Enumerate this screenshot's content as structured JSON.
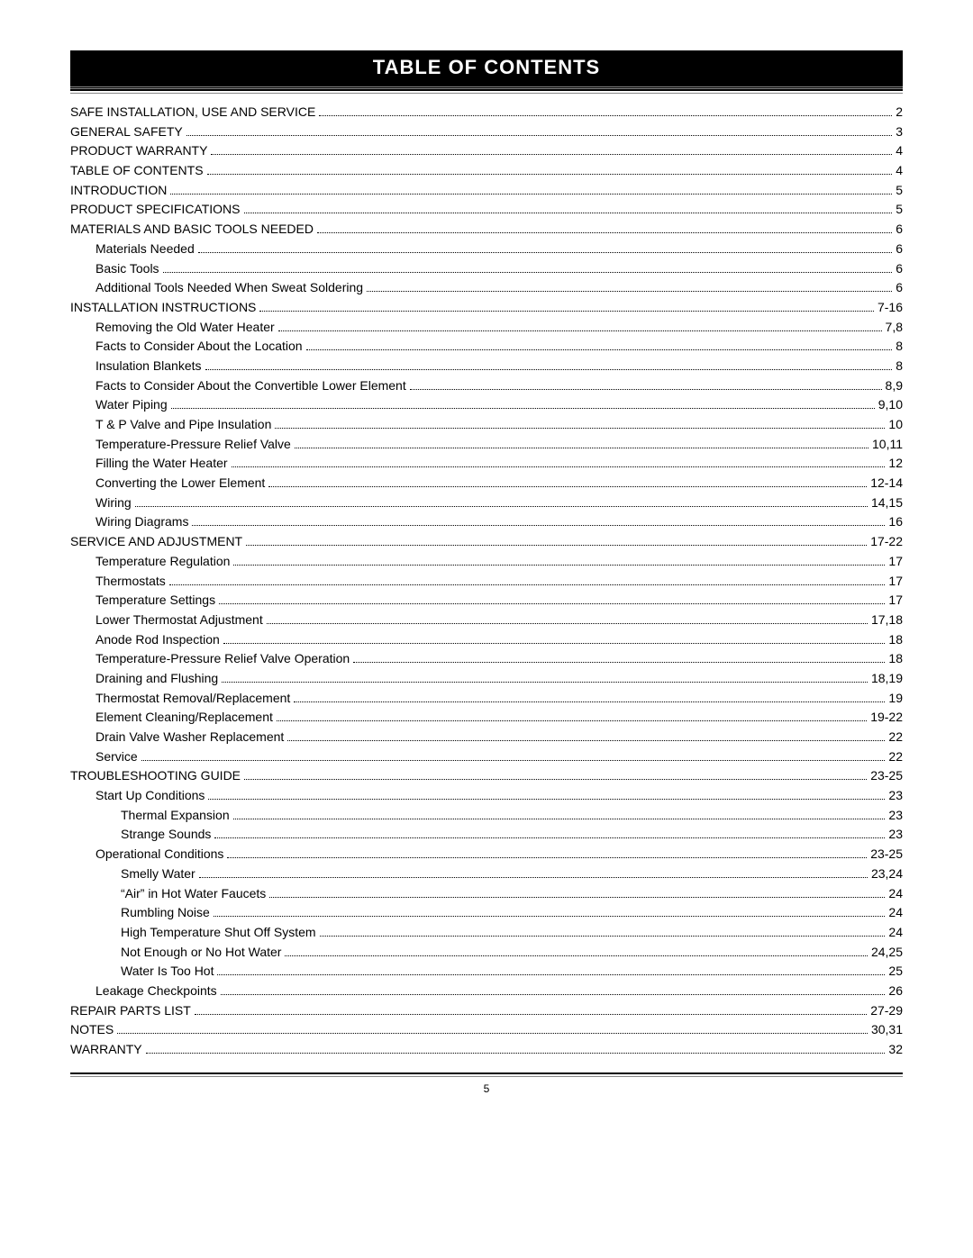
{
  "header": {
    "title": "TABLE OF CONTENTS"
  },
  "page_number": "5",
  "toc": [
    {
      "label": "SAFE INSTALLATION, USE AND SERVICE",
      "page": "2",
      "level": 0
    },
    {
      "label": "GENERAL SAFETY",
      "page": "3",
      "level": 0
    },
    {
      "label": "PRODUCT WARRANTY",
      "page": "4",
      "level": 0
    },
    {
      "label": "TABLE OF CONTENTS",
      "page": "4",
      "level": 0
    },
    {
      "label": "INTRODUCTION",
      "page": "5",
      "level": 0
    },
    {
      "label": "PRODUCT SPECIFICATIONS",
      "page": "5",
      "level": 0
    },
    {
      "label": "MATERIALS AND BASIC TOOLS NEEDED",
      "page": "6",
      "level": 0
    },
    {
      "label": "Materials Needed",
      "page": "6",
      "level": 1
    },
    {
      "label": "Basic Tools",
      "page": "6",
      "level": 1
    },
    {
      "label": "Additional Tools Needed When Sweat Soldering",
      "page": "6",
      "level": 1
    },
    {
      "label": "INSTALLATION INSTRUCTIONS",
      "page": "7-16",
      "level": 0
    },
    {
      "label": "Removing the Old Water Heater",
      "page": "7,8",
      "level": 1
    },
    {
      "label": "Facts to Consider About the Location",
      "page": "8",
      "level": 1
    },
    {
      "label": "Insulation Blankets",
      "page": "8",
      "level": 1
    },
    {
      "label": "Facts to Consider About the Convertible Lower Element",
      "page": "8,9",
      "level": 1
    },
    {
      "label": "Water Piping",
      "page": "9,10",
      "level": 1
    },
    {
      "label": "T & P Valve and Pipe Insulation",
      "page": "10",
      "level": 1
    },
    {
      "label": "Temperature-Pressure Relief Valve",
      "page": "10,11",
      "level": 1
    },
    {
      "label": "Filling the Water Heater",
      "page": "12",
      "level": 1
    },
    {
      "label": "Converting the Lower Element",
      "page": "12-14",
      "level": 1
    },
    {
      "label": "Wiring",
      "page": "14,15",
      "level": 1
    },
    {
      "label": "Wiring Diagrams",
      "page": "16",
      "level": 1
    },
    {
      "label": "SERVICE AND ADJUSTMENT",
      "page": "17-22",
      "level": 0
    },
    {
      "label": "Temperature Regulation",
      "page": "17",
      "level": 1
    },
    {
      "label": "Thermostats",
      "page": "17",
      "level": 1
    },
    {
      "label": "Temperature Settings",
      "page": "17",
      "level": 1
    },
    {
      "label": "Lower Thermostat Adjustment",
      "page": "17,18",
      "level": 1
    },
    {
      "label": "Anode Rod Inspection",
      "page": "18",
      "level": 1
    },
    {
      "label": "Temperature-Pressure Relief Valve Operation",
      "page": "18",
      "level": 1
    },
    {
      "label": "Draining and Flushing",
      "page": "18,19",
      "level": 1
    },
    {
      "label": "Thermostat Removal/Replacement",
      "page": "19",
      "level": 1
    },
    {
      "label": "Element Cleaning/Replacement",
      "page": "19-22",
      "level": 1
    },
    {
      "label": "Drain Valve Washer Replacement",
      "page": "22",
      "level": 1
    },
    {
      "label": "Service",
      "page": "22",
      "level": 1
    },
    {
      "label": "TROUBLESHOOTING GUIDE",
      "page": "23-25",
      "level": 0
    },
    {
      "label": "Start Up Conditions",
      "page": "23",
      "level": 1
    },
    {
      "label": "Thermal Expansion",
      "page": "23",
      "level": 2
    },
    {
      "label": "Strange Sounds",
      "page": "23",
      "level": 2
    },
    {
      "label": "Operational Conditions",
      "page": "23-25",
      "level": 1
    },
    {
      "label": "Smelly Water",
      "page": "23,24",
      "level": 2
    },
    {
      "label": "“Air” in Hot Water Faucets",
      "page": "24",
      "level": 2
    },
    {
      "label": "Rumbling Noise",
      "page": "24",
      "level": 2
    },
    {
      "label": "High Temperature Shut Off System",
      "page": "24",
      "level": 2
    },
    {
      "label": "Not Enough or No Hot Water",
      "page": "24,25",
      "level": 2
    },
    {
      "label": "Water Is Too Hot",
      "page": "25",
      "level": 2
    },
    {
      "label": "Leakage Checkpoints",
      "page": "26",
      "level": 1
    },
    {
      "label": "REPAIR PARTS LIST",
      "page": "27-29",
      "level": 0
    },
    {
      "label": "NOTES",
      "page": "30,31",
      "level": 0
    },
    {
      "label": "WARRANTY",
      "page": "32",
      "level": 0
    }
  ]
}
